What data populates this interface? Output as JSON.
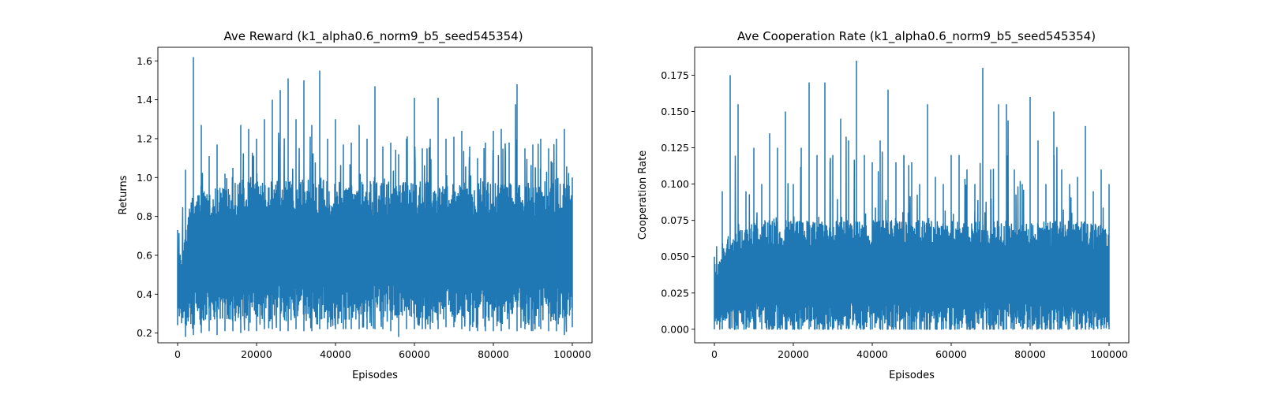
{
  "chart_data": [
    {
      "type": "line",
      "title": "Ave Reward (k1_alpha0.6_norm9_b5_seed545354)",
      "xlabel": "Episodes",
      "ylabel": "Returns",
      "xlim": [
        -5000,
        105000
      ],
      "ylim": [
        0.15,
        1.67
      ],
      "x_ticks": [
        0,
        20000,
        40000,
        60000,
        80000,
        100000
      ],
      "x_tick_labels": [
        "0",
        "20000",
        "40000",
        "60000",
        "80000",
        "100000"
      ],
      "y_ticks": [
        0.2,
        0.4,
        0.6,
        0.8,
        1.0,
        1.2,
        1.4,
        1.6
      ],
      "y_tick_labels": [
        "0.2",
        "0.4",
        "0.6",
        "0.8",
        "1.0",
        "1.2",
        "1.4",
        "1.6"
      ],
      "grid": false,
      "color": "#1f77b4",
      "series": [
        {
          "x": [
            0,
            2000,
            4000,
            6000,
            8000,
            10000,
            12000,
            14000,
            16000,
            18000,
            20000,
            22000,
            24000,
            26000,
            28000,
            30000,
            32000,
            34000,
            36000,
            38000,
            40000,
            42000,
            44000,
            46000,
            48000,
            50000,
            52000,
            54000,
            56000,
            58000,
            60000,
            62000,
            64000,
            66000,
            68000,
            70000,
            72000,
            74000,
            76000,
            78000,
            80000,
            82000,
            84000,
            86000,
            88000,
            90000,
            92000,
            94000,
            96000,
            98000,
            100000
          ],
          "max": [
            0.73,
            1.04,
            1.62,
            1.27,
            1.11,
            1.17,
            1.02,
            1.05,
            1.27,
            1.25,
            1.2,
            1.3,
            1.4,
            1.45,
            1.51,
            1.3,
            1.5,
            1.27,
            1.55,
            1.2,
            1.3,
            1.17,
            1.18,
            1.27,
            1.2,
            1.47,
            1.16,
            1.18,
            1.12,
            1.2,
            1.41,
            1.15,
            1.2,
            1.41,
            1.2,
            1.21,
            1.24,
            1.16,
            1.1,
            1.18,
            1.24,
            1.25,
            1.18,
            1.48,
            1.15,
            1.17,
            1.2,
            1.15,
            1.2,
            1.25,
            1.0
          ],
          "upper": [
            0.55,
            0.72,
            0.98,
            0.97,
            0.96,
            0.96,
            0.97,
            0.98,
            0.98,
            0.98,
            0.98,
            0.98,
            0.98,
            0.98,
            0.98,
            0.98,
            0.98,
            0.98,
            0.98,
            0.98,
            0.98,
            0.98,
            0.98,
            0.98,
            0.98,
            0.98,
            0.98,
            0.98,
            0.98,
            0.98,
            0.98,
            0.98,
            0.98,
            0.98,
            0.98,
            0.98,
            0.98,
            0.98,
            0.98,
            0.98,
            0.98,
            0.98,
            0.98,
            0.98,
            0.98,
            0.98,
            0.98,
            0.98,
            0.98,
            0.97,
            0.95
          ],
          "lower": [
            0.3,
            0.22,
            0.24,
            0.25,
            0.26,
            0.26,
            0.27,
            0.26,
            0.26,
            0.27,
            0.27,
            0.27,
            0.27,
            0.27,
            0.26,
            0.27,
            0.26,
            0.27,
            0.27,
            0.27,
            0.27,
            0.27,
            0.27,
            0.27,
            0.27,
            0.27,
            0.27,
            0.27,
            0.27,
            0.27,
            0.26,
            0.27,
            0.27,
            0.27,
            0.28,
            0.28,
            0.27,
            0.27,
            0.27,
            0.27,
            0.27,
            0.27,
            0.27,
            0.27,
            0.27,
            0.27,
            0.27,
            0.26,
            0.26,
            0.26,
            0.26
          ],
          "min": [
            0.24,
            0.18,
            0.19,
            0.2,
            0.21,
            0.19,
            0.21,
            0.21,
            0.2,
            0.21,
            0.21,
            0.22,
            0.22,
            0.21,
            0.21,
            0.22,
            0.21,
            0.21,
            0.22,
            0.22,
            0.22,
            0.22,
            0.22,
            0.22,
            0.22,
            0.22,
            0.22,
            0.21,
            0.18,
            0.22,
            0.22,
            0.22,
            0.22,
            0.22,
            0.23,
            0.23,
            0.22,
            0.21,
            0.21,
            0.21,
            0.21,
            0.21,
            0.22,
            0.21,
            0.22,
            0.21,
            0.22,
            0.21,
            0.21,
            0.19,
            0.23
          ]
        }
      ]
    },
    {
      "type": "line",
      "title": "Ave Cooperation Rate (k1_alpha0.6_norm9_b5_seed545354)",
      "xlabel": "Episodes",
      "ylabel": "Cooperation Rate",
      "xlim": [
        -5000,
        105000
      ],
      "ylim": [
        -0.0093,
        0.1942
      ],
      "x_ticks": [
        0,
        20000,
        40000,
        60000,
        80000,
        100000
      ],
      "x_tick_labels": [
        "0",
        "20000",
        "40000",
        "60000",
        "80000",
        "100000"
      ],
      "y_ticks": [
        0.0,
        0.025,
        0.05,
        0.075,
        0.1,
        0.125,
        0.15,
        0.175
      ],
      "y_tick_labels": [
        "0.000",
        "0.025",
        "0.050",
        "0.075",
        "0.100",
        "0.125",
        "0.150",
        "0.175"
      ],
      "grid": false,
      "color": "#1f77b4",
      "series": [
        {
          "x": [
            0,
            2000,
            4000,
            6000,
            8000,
            10000,
            12000,
            14000,
            16000,
            18000,
            20000,
            22000,
            24000,
            26000,
            28000,
            30000,
            32000,
            34000,
            36000,
            38000,
            40000,
            42000,
            44000,
            46000,
            48000,
            50000,
            52000,
            54000,
            56000,
            58000,
            60000,
            62000,
            64000,
            66000,
            68000,
            70000,
            72000,
            74000,
            76000,
            78000,
            80000,
            82000,
            84000,
            86000,
            88000,
            90000,
            92000,
            94000,
            96000,
            98000,
            100000
          ],
          "max": [
            0.05,
            0.095,
            0.175,
            0.155,
            0.095,
            0.125,
            0.1,
            0.135,
            0.125,
            0.15,
            0.1,
            0.125,
            0.17,
            0.12,
            0.17,
            0.12,
            0.145,
            0.13,
            0.185,
            0.12,
            0.115,
            0.13,
            0.165,
            0.115,
            0.12,
            0.115,
            0.1,
            0.155,
            0.105,
            0.1,
            0.12,
            0.12,
            0.11,
            0.1,
            0.18,
            0.11,
            0.155,
            0.155,
            0.11,
            0.1,
            0.16,
            0.13,
            0.1,
            0.15,
            0.11,
            0.1,
            0.105,
            0.14,
            0.095,
            0.11,
            0.1
          ],
          "upper": [
            0.035,
            0.055,
            0.07,
            0.072,
            0.072,
            0.073,
            0.075,
            0.075,
            0.075,
            0.075,
            0.075,
            0.075,
            0.075,
            0.075,
            0.075,
            0.075,
            0.075,
            0.075,
            0.075,
            0.075,
            0.075,
            0.075,
            0.075,
            0.075,
            0.075,
            0.075,
            0.075,
            0.075,
            0.075,
            0.075,
            0.075,
            0.075,
            0.075,
            0.075,
            0.075,
            0.075,
            0.075,
            0.075,
            0.075,
            0.075,
            0.075,
            0.075,
            0.075,
            0.075,
            0.075,
            0.075,
            0.075,
            0.075,
            0.072,
            0.072,
            0.07
          ],
          "lower": [
            0,
            0,
            0,
            0,
            0,
            0,
            0,
            0,
            0,
            0,
            0,
            0,
            0,
            0,
            0,
            0,
            0,
            0,
            0,
            0,
            0,
            0,
            0,
            0,
            0,
            0,
            0,
            0,
            0,
            0,
            0,
            0,
            0,
            0,
            0,
            0,
            0,
            0,
            0,
            0,
            0,
            0,
            0,
            0,
            0,
            0,
            0,
            0,
            0,
            0,
            0
          ],
          "min": [
            0,
            0,
            0,
            0,
            0,
            0,
            0,
            0,
            0,
            0,
            0,
            0,
            0,
            0,
            0,
            0,
            0,
            0,
            0,
            0,
            0,
            0,
            0,
            0,
            0,
            0,
            0,
            0,
            0,
            0,
            0,
            0,
            0,
            0,
            0,
            0,
            0,
            0,
            0,
            0,
            0,
            0,
            0,
            0,
            0,
            0,
            0,
            0,
            0,
            0,
            0
          ]
        }
      ]
    }
  ]
}
